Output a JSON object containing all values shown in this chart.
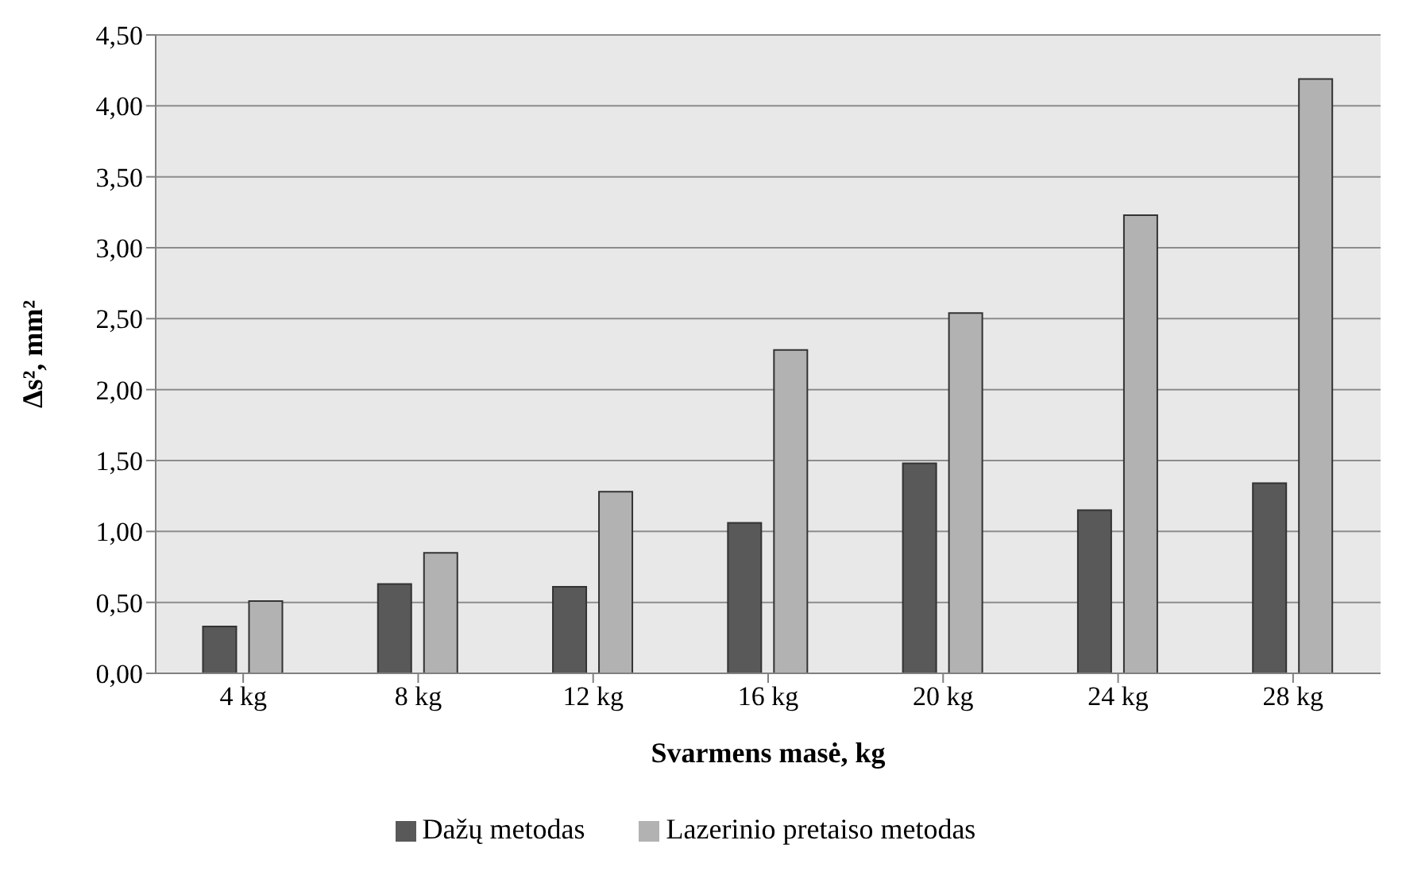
{
  "chart_data": {
    "type": "bar",
    "xlabel": "Svarmens masė, kg",
    "ylabel": "Δs², mm²",
    "categories": [
      "4 kg",
      "8 kg",
      "12 kg",
      "16 kg",
      "20 kg",
      "24 kg",
      "28 kg"
    ],
    "series": [
      {
        "name": "Dažų metodas",
        "color": "#595959",
        "values": [
          0.33,
          0.63,
          0.61,
          1.06,
          1.48,
          1.15,
          1.34
        ]
      },
      {
        "name": "Lazerinio pretaiso metodas",
        "color": "#b2b2b2",
        "values": [
          0.51,
          0.85,
          1.28,
          2.28,
          2.54,
          3.23,
          4.19
        ]
      }
    ],
    "ylim": [
      0,
      4.5
    ],
    "yticks": [
      {
        "value": 0,
        "label": "0,00"
      },
      {
        "value": 0.5,
        "label": "0,50"
      },
      {
        "value": 1,
        "label": "1,00"
      },
      {
        "value": 1.5,
        "label": "1,50"
      },
      {
        "value": 2,
        "label": "2,00"
      },
      {
        "value": 2.5,
        "label": "2,50"
      },
      {
        "value": 3,
        "label": "3,00"
      },
      {
        "value": 3.5,
        "label": "3,50"
      },
      {
        "value": 4,
        "label": "4,00"
      },
      {
        "value": 4.5,
        "label": "4,50"
      }
    ],
    "grid": "y",
    "legend": "bottom"
  }
}
